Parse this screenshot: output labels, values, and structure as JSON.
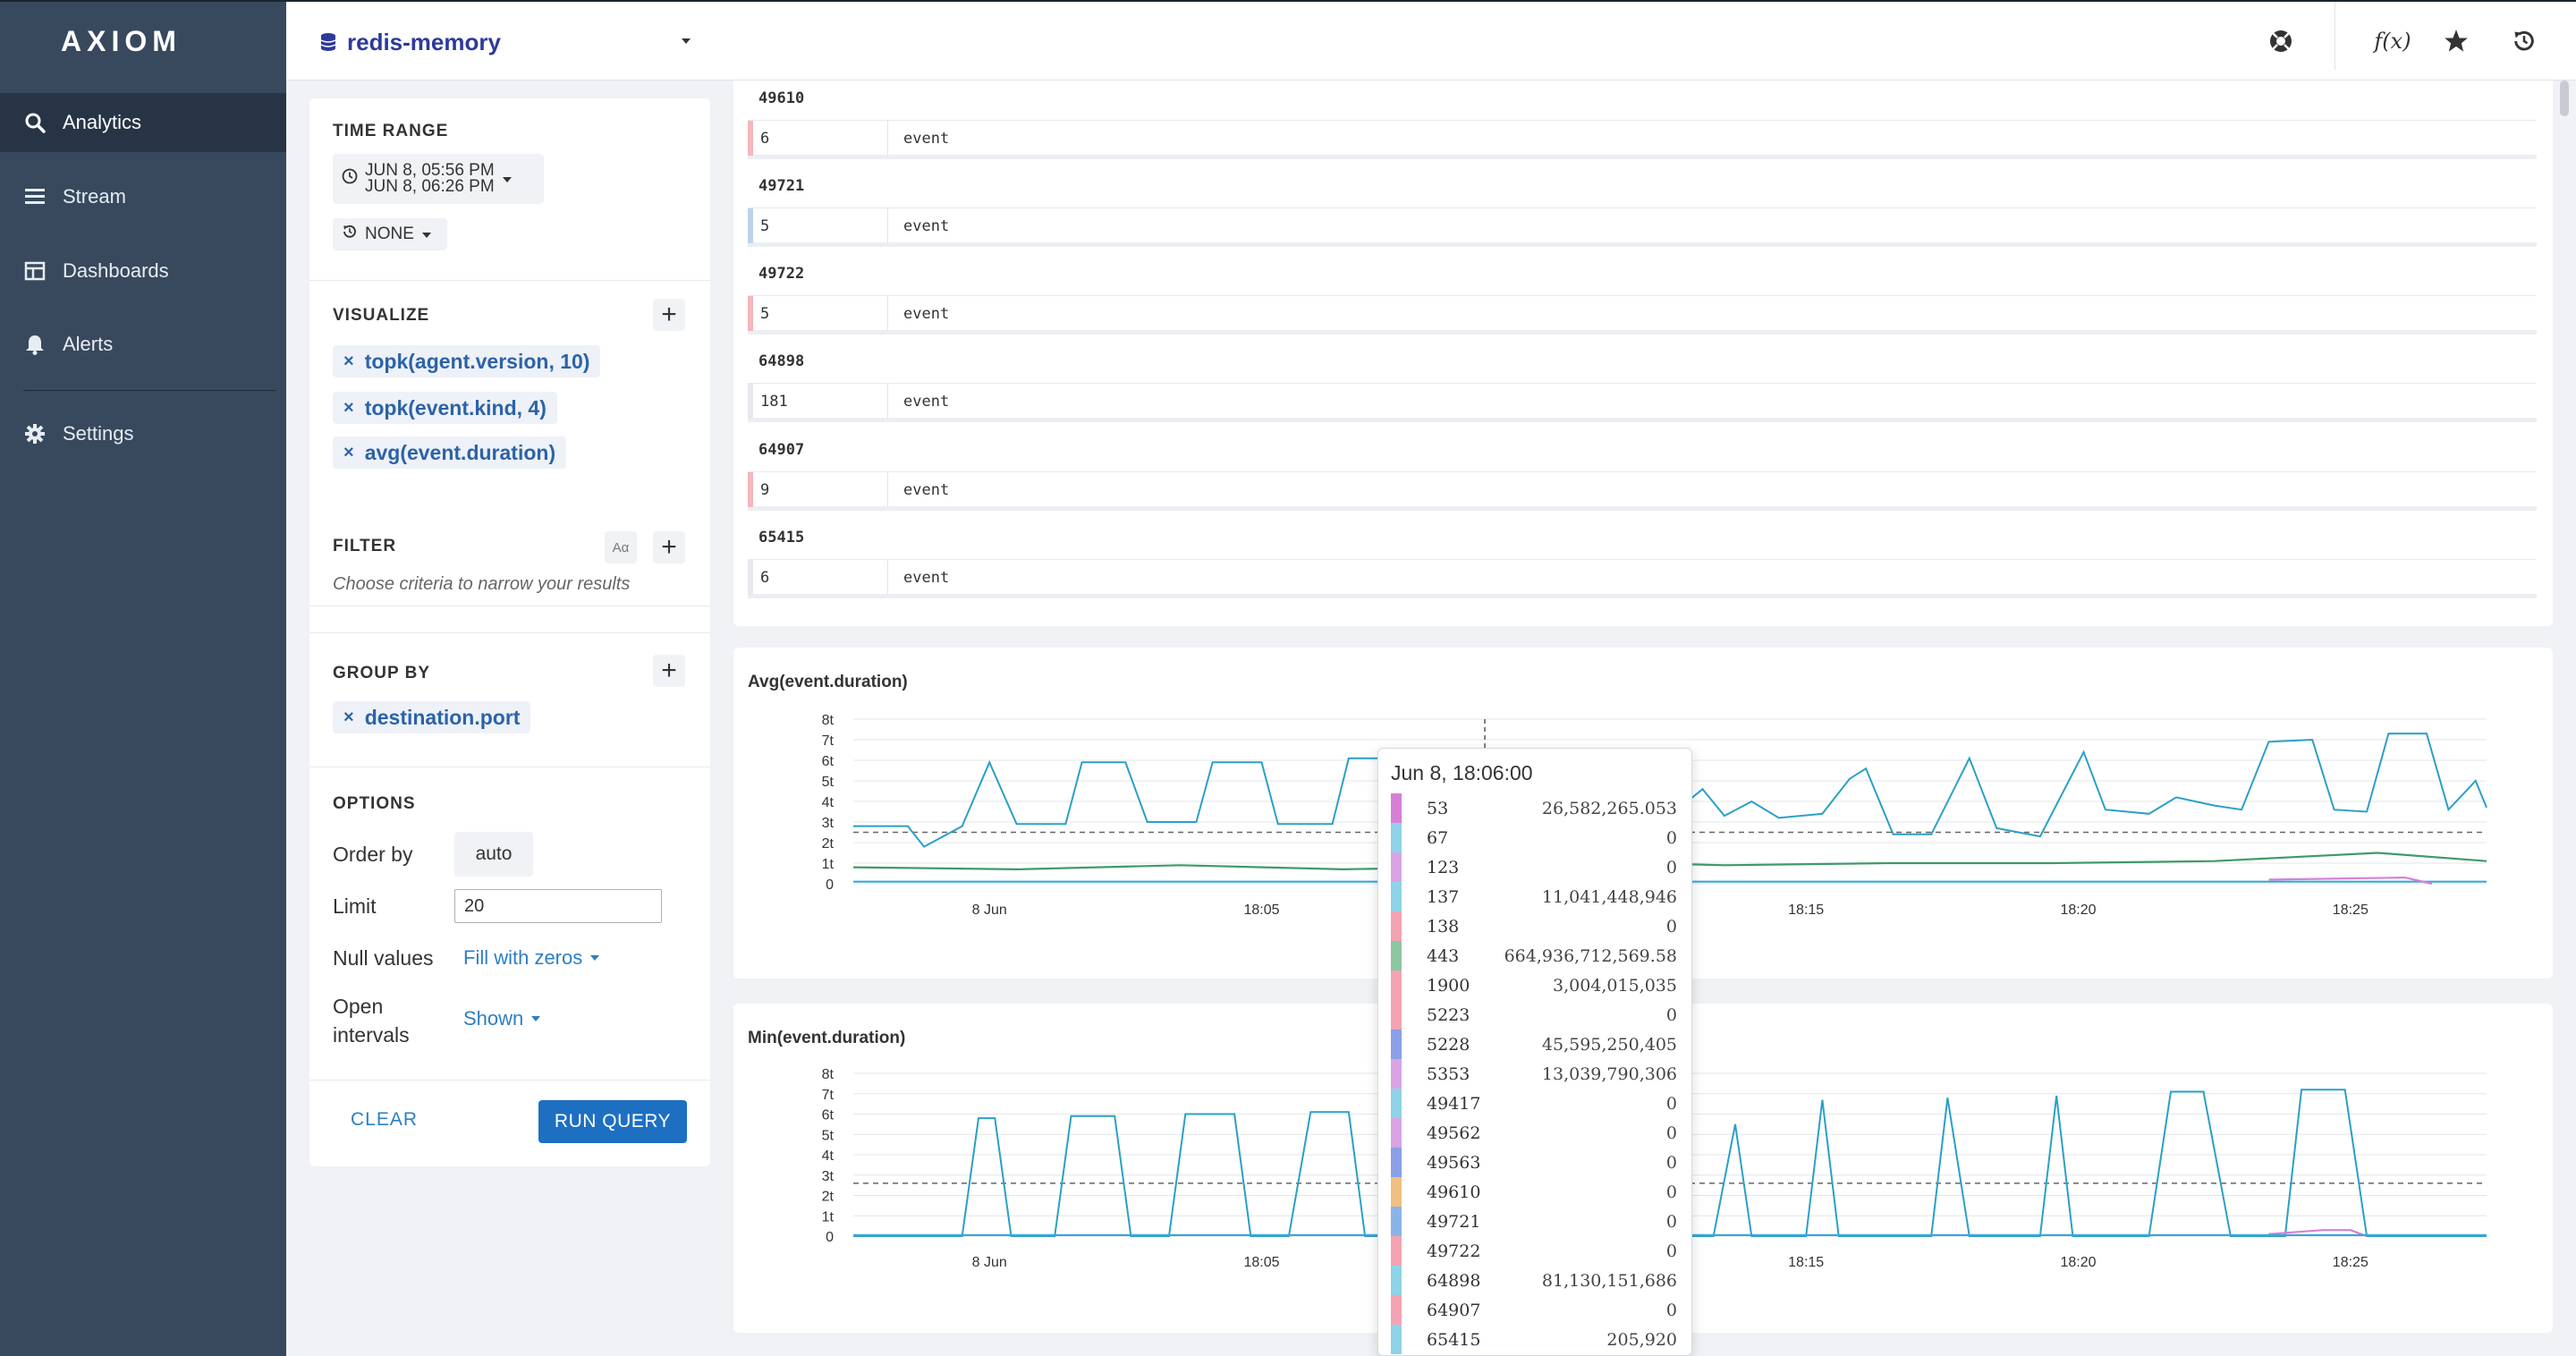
{
  "app": {
    "logo": "AXIOM"
  },
  "sidebar": {
    "items": [
      {
        "label": "Analytics",
        "icon": "search-icon",
        "active": true
      },
      {
        "label": "Stream",
        "icon": "stream-icon"
      },
      {
        "label": "Dashboards",
        "icon": "dashboard-icon"
      },
      {
        "label": "Alerts",
        "icon": "bell-icon"
      },
      {
        "label": "Settings",
        "icon": "gear-icon"
      }
    ]
  },
  "topbar": {
    "dataset": "redis-memory",
    "icons": [
      "help-icon",
      "function-icon",
      "star-icon",
      "history-icon"
    ],
    "function_label": "f(x)"
  },
  "query": {
    "time_range": {
      "title": "TIME RANGE",
      "start": "JUN 8, 05:56 PM",
      "end": "JUN 8, 06:26 PM",
      "compare": "NONE"
    },
    "visualize": {
      "title": "VISUALIZE",
      "items": [
        "topk(agent.version, 10)",
        "topk(event.kind, 4)",
        "avg(event.duration)"
      ]
    },
    "filter": {
      "title": "FILTER",
      "case_label": "Aα",
      "placeholder": "Choose criteria to narrow your results"
    },
    "group_by": {
      "title": "GROUP BY",
      "items": [
        "destination.port"
      ]
    },
    "options": {
      "title": "OPTIONS",
      "order_by_label": "Order by",
      "order_by_value": "auto",
      "limit_label": "Limit",
      "limit_value": "20",
      "null_label": "Null values",
      "null_value": "Fill with zeros",
      "open_label_1": "Open",
      "open_label_2": "intervals",
      "open_value": "Shown"
    },
    "clear_label": "CLEAR",
    "run_label": "RUN QUERY"
  },
  "groups": [
    {
      "key": "49610",
      "count": "6",
      "label": "event",
      "color": "#f4b6bb"
    },
    {
      "key": "49721",
      "count": "5",
      "label": "event",
      "color": "#bcd3ea"
    },
    {
      "key": "49722",
      "count": "5",
      "label": "event",
      "color": "#f4b6bb"
    },
    {
      "key": "64898",
      "count": "181",
      "label": "event",
      "color": "#e6e9ee"
    },
    {
      "key": "64907",
      "count": "9",
      "label": "event",
      "color": "#f4b6bb"
    },
    {
      "key": "65415",
      "count": "6",
      "label": "event",
      "color": "#e6e9ee"
    }
  ],
  "chart_data": [
    {
      "type": "line",
      "title": "Avg(event.duration)",
      "y_ticks": [
        "0",
        "1t",
        "2t",
        "3t",
        "4t",
        "5t",
        "6t",
        "7t",
        "8t"
      ],
      "x_ticks": [
        "8 Jun",
        "18:05",
        "18:10",
        "18:15",
        "18:20",
        "18:25"
      ],
      "ylim": [
        0,
        8
      ],
      "xlim": [
        0,
        30
      ],
      "x_tick_positions": [
        2.5,
        7.5,
        12.5,
        17.5,
        22.5,
        27.5
      ],
      "reference_line": 2.5,
      "series": [
        {
          "color": "#2aa0c6",
          "points": [
            [
              0,
              2.8
            ],
            [
              1,
              2.8
            ],
            [
              1.3,
              1.8
            ],
            [
              2,
              2.8
            ],
            [
              2.5,
              5.9
            ],
            [
              3,
              2.9
            ],
            [
              3.9,
              2.9
            ],
            [
              4.2,
              5.9
            ],
            [
              5,
              5.9
            ],
            [
              5.4,
              3
            ],
            [
              6.3,
              3
            ],
            [
              6.6,
              5.9
            ],
            [
              7.5,
              5.9
            ],
            [
              7.8,
              2.9
            ],
            [
              8.8,
              2.9
            ],
            [
              9.1,
              6.1
            ],
            [
              9.9,
              6.1
            ],
            [
              10.2,
              3.1
            ],
            [
              11,
              3.1
            ],
            [
              12.2,
              2.9
            ],
            [
              12.6,
              5.6
            ],
            [
              13,
              5.6
            ],
            [
              13.5,
              5.7
            ],
            [
              14.5,
              5.6
            ],
            [
              15,
              3.3
            ],
            [
              15.6,
              4.6
            ],
            [
              16,
              3.3
            ],
            [
              16.5,
              4
            ],
            [
              17,
              3.2
            ],
            [
              17.8,
              3.4
            ],
            [
              18.3,
              5.1
            ],
            [
              18.6,
              5.6
            ],
            [
              19.1,
              2.4
            ],
            [
              19.8,
              2.4
            ],
            [
              20.5,
              6.1
            ],
            [
              21,
              2.7
            ],
            [
              21.8,
              2.3
            ],
            [
              22.6,
              6.4
            ],
            [
              23,
              3.6
            ],
            [
              23.8,
              3.4
            ],
            [
              24.3,
              4.2
            ],
            [
              25,
              3.8
            ],
            [
              25.5,
              3.6
            ],
            [
              26,
              6.9
            ],
            [
              26.8,
              7
            ],
            [
              27.2,
              3.6
            ],
            [
              27.8,
              3.5
            ],
            [
              28.2,
              7.3
            ],
            [
              28.9,
              7.3
            ],
            [
              29.3,
              3.6
            ],
            [
              29.8,
              5
            ],
            [
              30,
              3.7
            ]
          ]
        },
        {
          "color": "#3f9a6a",
          "points": [
            [
              0,
              0.8
            ],
            [
              3,
              0.7
            ],
            [
              6,
              0.9
            ],
            [
              9,
              0.7
            ],
            [
              11,
              0.8
            ],
            [
              13,
              1.1
            ],
            [
              16,
              0.9
            ],
            [
              19,
              1
            ],
            [
              22,
              1
            ],
            [
              25,
              1.1
            ],
            [
              28,
              1.5
            ],
            [
              30,
              1.1
            ]
          ]
        },
        {
          "color": "#3aa7d6",
          "points": [
            [
              0,
              0.1
            ],
            [
              30,
              0.1
            ]
          ]
        },
        {
          "color": "#d77fd6",
          "points": [
            [
              26,
              0.2
            ],
            [
              28.5,
              0.3
            ],
            [
              29,
              0
            ]
          ]
        }
      ]
    },
    {
      "type": "line",
      "title": "Min(event.duration)",
      "y_ticks": [
        "0",
        "1t",
        "2t",
        "3t",
        "4t",
        "5t",
        "6t",
        "7t",
        "8t"
      ],
      "x_ticks": [
        "8 Jun",
        "18:05",
        "18:10",
        "18:15",
        "18:20",
        "18:25"
      ],
      "ylim": [
        0,
        8
      ],
      "xlim": [
        0,
        30
      ],
      "x_tick_positions": [
        2.5,
        7.5,
        12.5,
        17.5,
        22.5,
        27.5
      ],
      "reference_line": 2.6,
      "series": [
        {
          "color": "#2aa0c6",
          "points": [
            [
              0,
              0
            ],
            [
              2,
              0
            ],
            [
              2.3,
              5.8
            ],
            [
              2.6,
              5.8
            ],
            [
              2.9,
              0
            ],
            [
              3.7,
              0
            ],
            [
              4,
              5.9
            ],
            [
              4.8,
              5.9
            ],
            [
              5.1,
              0
            ],
            [
              5.8,
              0
            ],
            [
              6.1,
              6
            ],
            [
              7,
              6
            ],
            [
              7.3,
              0
            ],
            [
              8,
              0
            ],
            [
              8.4,
              6.1
            ],
            [
              9.1,
              6.1
            ],
            [
              9.4,
              0
            ],
            [
              12,
              0
            ],
            [
              12.3,
              6.5
            ],
            [
              12.8,
              6.5
            ],
            [
              13.2,
              0
            ],
            [
              15.8,
              0
            ],
            [
              16.2,
              5.5
            ],
            [
              16.5,
              0
            ],
            [
              17.5,
              0
            ],
            [
              17.8,
              6.7
            ],
            [
              18.1,
              0
            ],
            [
              19.8,
              0
            ],
            [
              20.1,
              6.8
            ],
            [
              20.5,
              0
            ],
            [
              21.8,
              0
            ],
            [
              22.1,
              6.9
            ],
            [
              22.4,
              0
            ],
            [
              23.8,
              0
            ],
            [
              24.2,
              7.1
            ],
            [
              24.8,
              7.1
            ],
            [
              25.3,
              0
            ],
            [
              26.3,
              0
            ],
            [
              26.6,
              7.2
            ],
            [
              27.4,
              7.2
            ],
            [
              27.8,
              0
            ],
            [
              30,
              0
            ]
          ]
        },
        {
          "color": "#d77fd6",
          "points": [
            [
              26,
              0.1
            ],
            [
              27,
              0.3
            ],
            [
              27.5,
              0.3
            ],
            [
              27.8,
              0
            ]
          ]
        },
        {
          "color": "#3aa7d6",
          "points": [
            [
              0,
              0.05
            ],
            [
              30,
              0.05
            ]
          ]
        }
      ]
    }
  ],
  "tooltip": {
    "title": "Jun 8, 18:06:00",
    "rows": [
      {
        "key": "53",
        "value": "26,582,265.053",
        "color": "#d77fd6"
      },
      {
        "key": "67",
        "value": "0",
        "color": "#8fd3e8"
      },
      {
        "key": "123",
        "value": "0",
        "color": "#d9a3e6"
      },
      {
        "key": "137",
        "value": "11,041,448,946",
        "color": "#8fd3e8"
      },
      {
        "key": "138",
        "value": "0",
        "color": "#f4a3b4"
      },
      {
        "key": "443",
        "value": "664,936,712,569.58",
        "color": "#8cc7a0"
      },
      {
        "key": "1900",
        "value": "3,004,015,035",
        "color": "#f4a3b4"
      },
      {
        "key": "5223",
        "value": "0",
        "color": "#f4a3b4"
      },
      {
        "key": "5228",
        "value": "45,595,250,405",
        "color": "#8a9fe8"
      },
      {
        "key": "5353",
        "value": "13,039,790,306",
        "color": "#d9a3e6"
      },
      {
        "key": "49417",
        "value": "0",
        "color": "#8fd3e8"
      },
      {
        "key": "49562",
        "value": "0",
        "color": "#d9a3e6"
      },
      {
        "key": "49563",
        "value": "0",
        "color": "#8a9fe8"
      },
      {
        "key": "49610",
        "value": "0",
        "color": "#f0c080"
      },
      {
        "key": "49721",
        "value": "0",
        "color": "#8ab4e8"
      },
      {
        "key": "49722",
        "value": "0",
        "color": "#f4a3b4"
      },
      {
        "key": "64898",
        "value": "81,130,151,686",
        "color": "#8fd3e8"
      },
      {
        "key": "64907",
        "value": "0",
        "color": "#f4a3b4"
      },
      {
        "key": "65415",
        "value": "205,920",
        "color": "#8fd3e8"
      }
    ]
  }
}
